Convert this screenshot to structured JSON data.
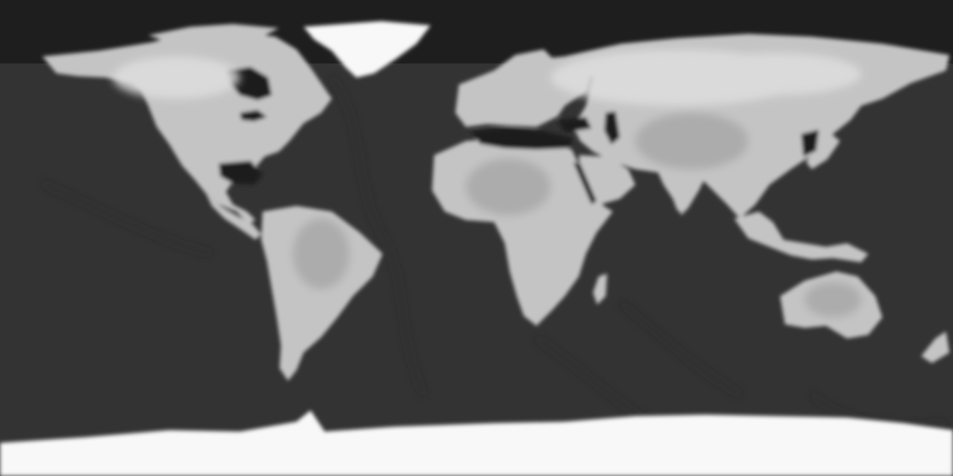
{
  "map": {
    "projection": "equirectangular",
    "style": "grayscale-relief",
    "colors": {
      "ocean": "#333333",
      "ocean_trench": "#282828",
      "land_low": "#a8a8a8",
      "land_mid": "#c4c4c4",
      "land_high": "#dedede",
      "ice": "#f8f8f8",
      "inland_water": "#1c1c1c",
      "polar_sky": "#1e1e1e"
    },
    "regions": [
      "north-america",
      "greenland",
      "south-america",
      "europe",
      "africa",
      "asia",
      "arabian-peninsula",
      "indian-subcontinent",
      "southeast-asia",
      "australia",
      "madagascar",
      "new-zealand",
      "antarctica",
      "arctic-islands"
    ],
    "water_bodies": [
      "hudson-bay",
      "gulf-of-mexico",
      "caribbean-sea",
      "mediterranean-sea",
      "black-sea",
      "caspian-sea",
      "red-sea",
      "persian-gulf",
      "sea-of-japan"
    ]
  }
}
